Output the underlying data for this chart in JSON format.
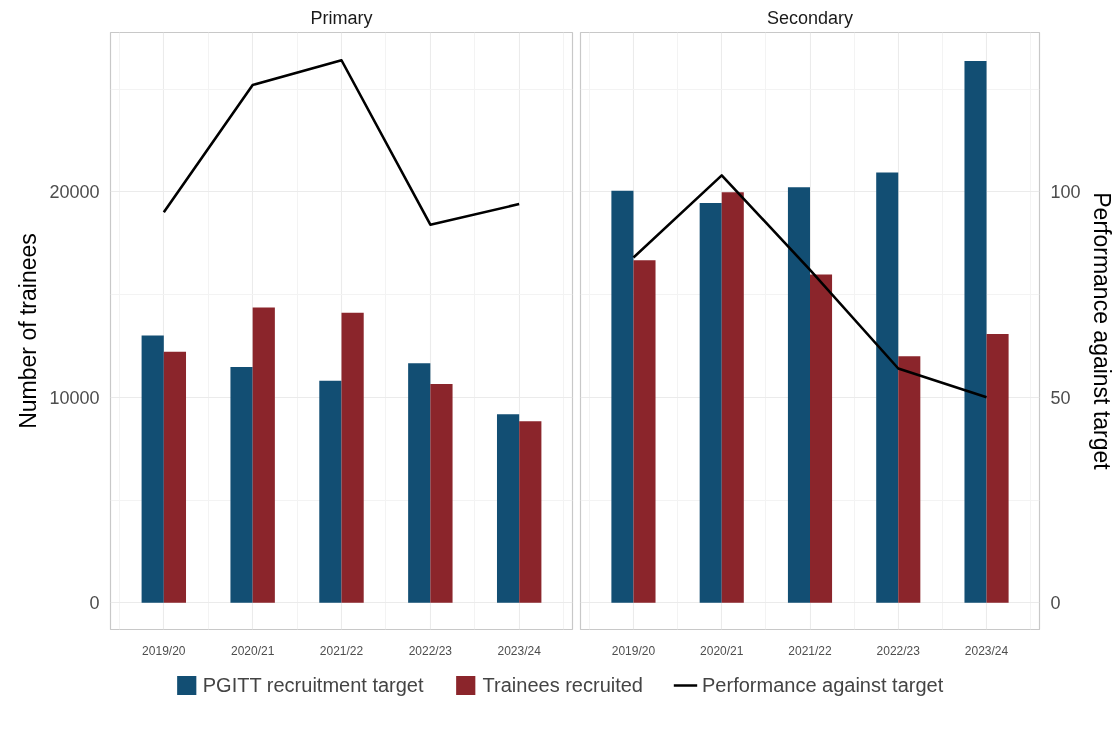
{
  "chart_data": [
    {
      "type": "bar",
      "title": "Primary",
      "ylabel": "Number of trainees",
      "categories": [
        "2019/20",
        "2020/21",
        "2021/22",
        "2022/23",
        "2023/24"
      ],
      "series": [
        {
          "name": "PGITT recruitment target",
          "color": "#124e73",
          "values": [
            13000,
            11470,
            10800,
            11650,
            9170
          ]
        },
        {
          "name": "Trainees recruited",
          "color": "#8b252b",
          "values": [
            12210,
            14370,
            14110,
            10640,
            8830
          ]
        },
        {
          "name": "Performance against target",
          "type": "line",
          "axis": "y2",
          "color": "#000000",
          "values": [
            95,
            126,
            132,
            92,
            97
          ]
        }
      ],
      "ylim": [
        -1300,
        27750
      ],
      "yticks": [
        0,
        10000,
        20000
      ],
      "y2lim": [
        -6.5,
        138.75
      ],
      "grid": true,
      "legend": "bottom"
    },
    {
      "type": "bar",
      "title": "Secondary",
      "y2label": "Performance against target",
      "categories": [
        "2019/20",
        "2020/21",
        "2021/22",
        "2022/23",
        "2023/24"
      ],
      "series": [
        {
          "color": "#124e73",
          "values": [
            20050,
            19450,
            20220,
            20940,
            26360
          ]
        },
        {
          "color": "#8b252b",
          "values": [
            16670,
            19980,
            15970,
            12000,
            13080
          ]
        },
        {
          "type": "line",
          "axis": "y2",
          "color": "#000000",
          "values": [
            84,
            104,
            81,
            57,
            50
          ]
        }
      ],
      "ylim": [
        -1300,
        27750
      ],
      "y2lim": [
        -6.5,
        138.75
      ],
      "y2ticks": [
        0,
        50,
        100
      ],
      "grid": true
    }
  ]
}
